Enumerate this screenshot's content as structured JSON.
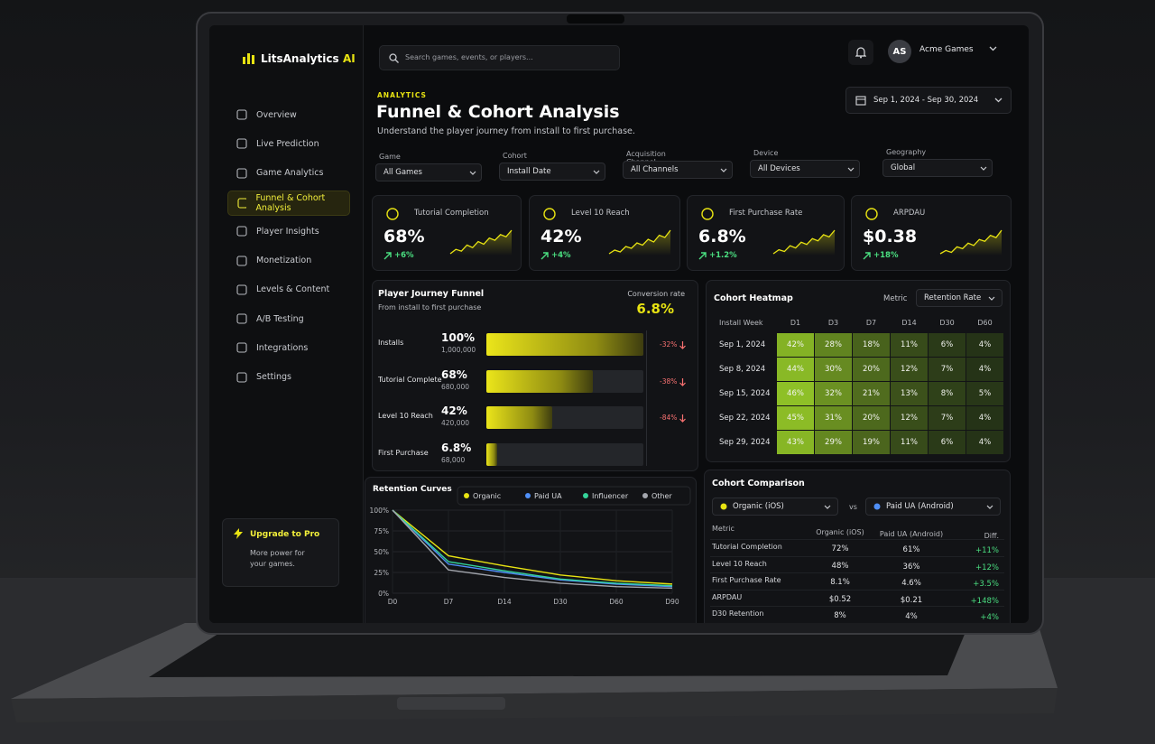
{
  "brand": {
    "name": "LitsAnalytics",
    "badge": "AI"
  },
  "search": "Search games, events, or players...",
  "user": {
    "initials": "AS",
    "name": "Acme Games"
  },
  "nav": [
    "Overview",
    "Live Prediction",
    "Game Analytics",
    "Funnel & Cohort Analysis",
    "Player Insights",
    "Monetization",
    "Levels & Content",
    "A/B Testing",
    "Integrations",
    "Settings"
  ],
  "nav_active": 3,
  "upgrade": {
    "title": "Upgrade to Pro",
    "text": "More power for your games."
  },
  "header": {
    "eyebrow": "ANALYTICS",
    "title": "Funnel & Cohort Analysis",
    "subtitle": "Understand the player journey from install to first purchase.",
    "date_range": "Sep 1, 2024 - Sep 30, 2024"
  },
  "filters": [
    {
      "label": "Game",
      "value": "All Games"
    },
    {
      "label": "Cohort",
      "value": "Install Date"
    },
    {
      "label": "Acquisition Channel",
      "value": "All Channels"
    },
    {
      "label": "Device",
      "value": "All Devices"
    },
    {
      "label": "Geography",
      "value": "Global"
    }
  ],
  "kpis": [
    {
      "label": "Tutorial Completion",
      "value": "68%",
      "change": "+6%",
      "trend": [
        3,
        4,
        3.6,
        5,
        4.4,
        5.8,
        5.2,
        6.6,
        6.1,
        7.4,
        6.9,
        8.4
      ]
    },
    {
      "label": "Level 10 Reach",
      "value": "42%",
      "change": "+4%",
      "trend": [
        3,
        3.8,
        3.4,
        4.6,
        4.2,
        5.4,
        4.9,
        6.2,
        5.6,
        7.1,
        6.6,
        8.2
      ]
    },
    {
      "label": "First Purchase Rate",
      "value": "6.8%",
      "change": "+1.2%",
      "trend": [
        3,
        3.9,
        3.5,
        4.8,
        4.3,
        5.6,
        5.1,
        6.4,
        5.9,
        7.3,
        6.8,
        8.3
      ]
    },
    {
      "label": "ARPDAU",
      "value": "$0.38",
      "change": "+18%",
      "trend": [
        3,
        3.7,
        3.3,
        4.5,
        4.1,
        5.3,
        4.8,
        6.1,
        5.7,
        7,
        6.5,
        8.1
      ]
    }
  ],
  "funnel": {
    "title": "Player Journey Funnel",
    "subtitle": "From install to first purchase",
    "conversion_label": "Conversion rate",
    "conversion_value": "6.8%",
    "xlim": [
      0,
      100
    ],
    "stages": [
      {
        "name": "Installs",
        "value": 100,
        "value_label": "100%",
        "count": "1,000,000",
        "drop": "-32%"
      },
      {
        "name": "Tutorial Complete",
        "value": 68,
        "value_label": "68%",
        "count": "680,000",
        "drop": "-38%"
      },
      {
        "name": "Level 10 Reach",
        "value": 42,
        "value_label": "42%",
        "count": "420,000",
        "drop": "-84%"
      },
      {
        "name": "First Purchase",
        "value": 6.8,
        "value_label": "6.8%",
        "count": "68,000"
      }
    ]
  },
  "heatmap": {
    "title": "Cohort Heatmap",
    "metric_label": "Metric",
    "metric": "Retention Rate",
    "row_header": "Install Week",
    "columns": [
      "D1",
      "D3",
      "D7",
      "D14",
      "D30",
      "D60"
    ],
    "clim": [
      0,
      50
    ],
    "rows": [
      {
        "week": "Sep 1, 2024",
        "values": [
          42,
          28,
          18,
          11,
          6,
          4
        ],
        "value_labels": [
          "42%",
          "28%",
          "18%",
          "11%",
          "6%",
          "4%"
        ]
      },
      {
        "week": "Sep 8, 2024",
        "values": [
          44,
          30,
          20,
          12,
          7,
          4
        ],
        "value_labels": [
          "44%",
          "30%",
          "20%",
          "12%",
          "7%",
          "4%"
        ]
      },
      {
        "week": "Sep 15, 2024",
        "values": [
          46,
          32,
          21,
          13,
          8,
          5
        ],
        "value_labels": [
          "46%",
          "32%",
          "21%",
          "13%",
          "8%",
          "5%"
        ]
      },
      {
        "week": "Sep 22, 2024",
        "values": [
          45,
          31,
          20,
          12,
          7,
          4
        ],
        "value_labels": [
          "45%",
          "31%",
          "20%",
          "12%",
          "7%",
          "4%"
        ]
      },
      {
        "week": "Sep 29, 2024",
        "values": [
          43,
          29,
          19,
          11,
          6,
          4
        ],
        "value_labels": [
          "43%",
          "29%",
          "19%",
          "11%",
          "6%",
          "4%"
        ]
      }
    ]
  },
  "retention": {
    "chart_data": {
      "type": "line",
      "title": "Retention Curves",
      "categories": [
        "D0",
        "D7",
        "D14",
        "D30",
        "D60",
        "D90"
      ],
      "ylim": [
        0,
        100
      ],
      "yticks": [
        {
          "value": 100,
          "label": "100%"
        },
        {
          "value": 75,
          "label": "75%"
        },
        {
          "value": 50,
          "label": "50%"
        },
        {
          "value": 25,
          "label": "25%"
        },
        {
          "value": 0,
          "label": "0%"
        }
      ],
      "grid": true,
      "series": [
        {
          "name": "Organic",
          "color": "#e8e312",
          "values": [
            100,
            45,
            33,
            22,
            15,
            11
          ]
        },
        {
          "name": "Paid UA",
          "color": "#4f8ff7",
          "values": [
            100,
            35,
            25,
            16,
            11,
            8
          ]
        },
        {
          "name": "Influencer",
          "color": "#34d399",
          "values": [
            100,
            38,
            27,
            17,
            12,
            9
          ]
        },
        {
          "name": "Other",
          "color": "#a3a6ad",
          "values": [
            100,
            28,
            19,
            12,
            8,
            6
          ]
        }
      ]
    }
  },
  "comparison": {
    "title": "Cohort Comparison",
    "left": {
      "name": "Organic (iOS)",
      "color": "#e8e312"
    },
    "vs": "vs",
    "right": {
      "name": "Paid UA (Android)",
      "color": "#4f8ff7"
    },
    "columns": [
      "Metric",
      "Diff."
    ],
    "rows": [
      [
        "Tutorial Completion",
        "72%",
        "61%",
        "+11%"
      ],
      [
        "Level 10 Reach",
        "48%",
        "36%",
        "+12%"
      ],
      [
        "First Purchase Rate",
        "8.1%",
        "4.6%",
        "+3.5%"
      ],
      [
        "ARPDAU",
        "$0.52",
        "$0.21",
        "+148%"
      ],
      [
        "D30 Retention",
        "8%",
        "4%",
        "+4%"
      ]
    ]
  }
}
